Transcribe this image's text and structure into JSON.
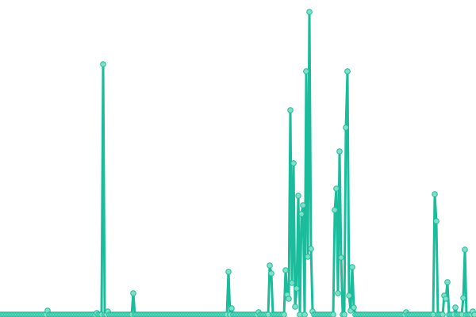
{
  "chart_data": {
    "type": "line",
    "title": "",
    "xlabel": "",
    "ylabel": "",
    "axes_visible": false,
    "grid": false,
    "legend": "none",
    "markers": true,
    "xlim": [
      0,
      299
    ],
    "ylim": [
      0,
      385
    ],
    "colors": {
      "line": "#1abc9c",
      "marker_fill": "#7fe0c6",
      "marker_stroke": "#1abc9c"
    },
    "series": [
      {
        "values": [
          0,
          0,
          0,
          0,
          0,
          0,
          0,
          0,
          0,
          0,
          0,
          0,
          0,
          0,
          0,
          0,
          0,
          0,
          0,
          0,
          0,
          0,
          0,
          0,
          0,
          0,
          0,
          0,
          0,
          0,
          5,
          0,
          0,
          0,
          0,
          0,
          0,
          0,
          0,
          0,
          0,
          0,
          0,
          0,
          0,
          0,
          0,
          0,
          0,
          0,
          0,
          0,
          0,
          0,
          0,
          0,
          0,
          0,
          0,
          0,
          0,
          2,
          0,
          0,
          0,
          316,
          0,
          0,
          4,
          0,
          0,
          0,
          0,
          0,
          0,
          0,
          0,
          0,
          0,
          0,
          0,
          0,
          0,
          0,
          27,
          0,
          0,
          0,
          0,
          0,
          0,
          0,
          0,
          0,
          0,
          0,
          0,
          0,
          0,
          0,
          0,
          0,
          0,
          0,
          0,
          0,
          0,
          0,
          0,
          0,
          0,
          0,
          0,
          0,
          0,
          0,
          0,
          0,
          0,
          0,
          0,
          0,
          0,
          0,
          0,
          0,
          0,
          0,
          0,
          0,
          0,
          0,
          0,
          0,
          0,
          0,
          0,
          0,
          0,
          0,
          0,
          0,
          0,
          0,
          54,
          0,
          8,
          0,
          0,
          0,
          0,
          0,
          0,
          0,
          0,
          0,
          0,
          0,
          0,
          0,
          0,
          0,
          0,
          3,
          0,
          0,
          0,
          0,
          0,
          0,
          62,
          52,
          0,
          0,
          0,
          0,
          0,
          0,
          0,
          0,
          56,
          25,
          20,
          258,
          40,
          191,
          10,
          33,
          150,
          0,
          127,
          138,
          0,
          307,
          73,
          382,
          83,
          4,
          0,
          0,
          0,
          0,
          0,
          0,
          0,
          0,
          0,
          0,
          0,
          0,
          0,
          132,
          159,
          27,
          206,
          72,
          0,
          0,
          236,
          307,
          24,
          5,
          60,
          9,
          0,
          0,
          0,
          0,
          0,
          0,
          0,
          0,
          0,
          0,
          0,
          0,
          0,
          0,
          0,
          0,
          0,
          0,
          0,
          0,
          0,
          0,
          0,
          0,
          0,
          0,
          0,
          0,
          0,
          0,
          0,
          0,
          3,
          0,
          0,
          0,
          0,
          0,
          0,
          0,
          0,
          0,
          0,
          0,
          0,
          0,
          0,
          0,
          0,
          0,
          152,
          118,
          0,
          0,
          0,
          0,
          24,
          20,
          41,
          0,
          0,
          0,
          0,
          9,
          0,
          0,
          0,
          0,
          21,
          82,
          0,
          0,
          0,
          0,
          4,
          0
        ]
      }
    ]
  }
}
